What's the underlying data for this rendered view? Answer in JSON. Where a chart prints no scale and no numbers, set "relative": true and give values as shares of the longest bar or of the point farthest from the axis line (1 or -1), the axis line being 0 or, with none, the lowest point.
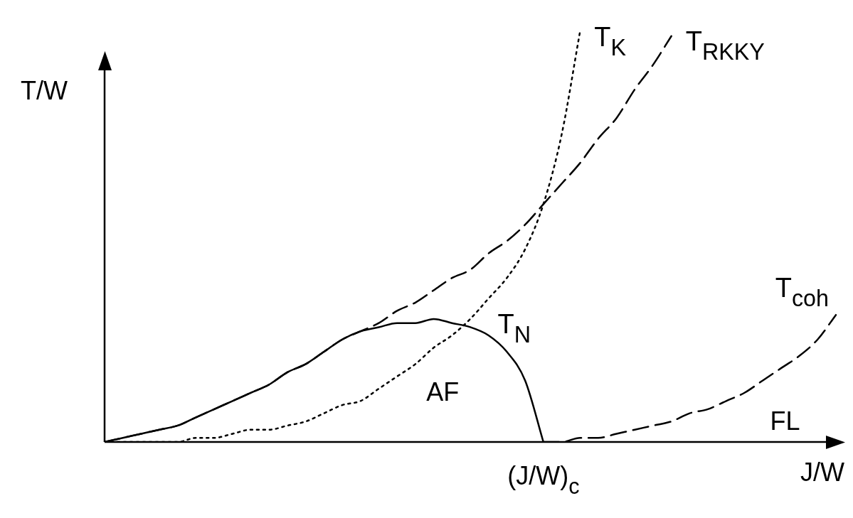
{
  "chart_data": {
    "type": "line",
    "relative": true,
    "xlabel": "J/W",
    "ylabel": "T/W",
    "marker": "none",
    "legend": false,
    "categories": [
      null,
      null,
      null,
      null,
      null,
      null,
      null,
      null,
      null,
      null,
      null,
      null,
      null,
      null,
      null,
      null,
      null,
      null,
      null,
      null,
      null,
      null,
      null,
      null,
      null,
      null,
      null,
      null,
      null,
      null,
      null,
      null,
      null,
      null,
      null,
      null,
      null,
      null,
      null,
      null,
      null
    ],
    "series": [
      {
        "name": "T$_{N}$",
        "color": "#000000",
        "line_style": "solid",
        "values": [
          0,
          0.01,
          0.02,
          0.03,
          0.04,
          0.06,
          0.08,
          0.1,
          0.12,
          0.14,
          0.17,
          0.19,
          0.22,
          0.25,
          0.27,
          0.28,
          0.29,
          0.29,
          0.3,
          0.29,
          0.28,
          0.26,
          0.22,
          0.15,
          0,
          null,
          null,
          null,
          null,
          null,
          null,
          null,
          null,
          null,
          null,
          null,
          null,
          null,
          null,
          null,
          null
        ]
      },
      {
        "name": "T$_{K}$",
        "color": "#000000",
        "line_style": "dotted",
        "values": [
          0,
          0,
          0,
          0,
          0,
          0.01,
          0.01,
          0.02,
          0.03,
          0.03,
          0.04,
          0.05,
          0.07,
          0.09,
          0.1,
          0.13,
          0.16,
          0.19,
          0.23,
          0.26,
          0.3,
          0.35,
          0.4,
          0.47,
          0.58,
          0.75,
          1,
          null,
          null,
          null,
          null,
          null,
          null,
          null,
          null,
          null,
          null,
          null,
          null,
          null,
          null
        ]
      },
      {
        "name": "T$_{RKKY}$",
        "color": "#000000",
        "line_style": "dashed",
        "values": [
          0,
          0.01,
          0.02,
          0.03,
          0.04,
          0.06,
          0.08,
          0.1,
          0.12,
          0.14,
          0.17,
          0.19,
          0.22,
          0.25,
          0.27,
          0.29,
          0.32,
          0.34,
          0.37,
          0.4,
          0.42,
          0.46,
          0.49,
          0.53,
          0.58,
          0.63,
          0.68,
          0.74,
          0.79,
          0.86,
          0.92,
          0.99,
          null,
          null,
          null,
          null,
          null,
          null,
          null,
          null,
          null
        ]
      },
      {
        "name": "T$_{coh}$",
        "color": "#000000",
        "line_style": "dashed",
        "values": [
          null,
          null,
          null,
          null,
          null,
          null,
          null,
          null,
          null,
          null,
          null,
          null,
          null,
          null,
          null,
          null,
          null,
          null,
          null,
          null,
          null,
          null,
          null,
          null,
          0,
          0,
          0.01,
          0.01,
          0.02,
          0.03,
          0.04,
          0.05,
          0.07,
          0.08,
          0.1,
          0.12,
          0.15,
          0.18,
          0.21,
          0.25,
          0.31
        ]
      }
    ],
    "annotations": [
      "AF",
      "FL",
      "(J/W)$_{c}$"
    ]
  }
}
